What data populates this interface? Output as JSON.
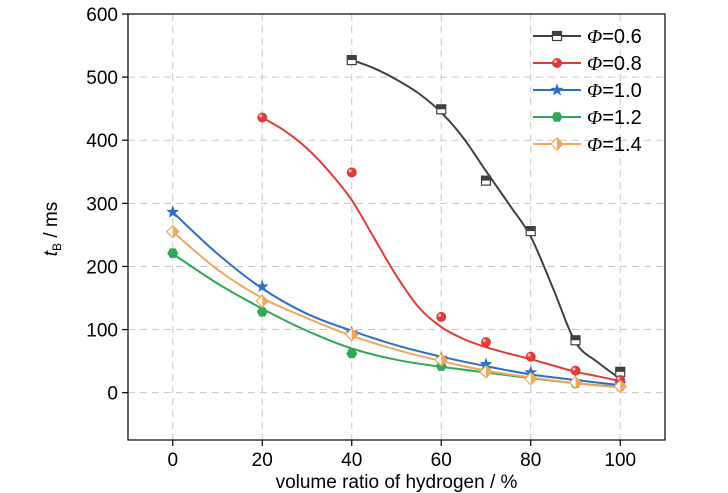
{
  "chart_data": {
    "type": "line",
    "title": "",
    "xlabel": "volume ratio of hydrogen / %",
    "ylabel": {
      "main": "t",
      "sub": "B",
      "unit": " / ms"
    },
    "xlim": [
      -10,
      110
    ],
    "ylim": [
      -75,
      600
    ],
    "xticks": [
      0,
      20,
      40,
      60,
      80,
      100
    ],
    "yticks": [
      0,
      100,
      200,
      300,
      400,
      500,
      600
    ],
    "grid": true,
    "legend_position": "top-right",
    "series": [
      {
        "name_prefix": "Φ",
        "name_suffix": "=0.6",
        "color": "#404040",
        "marker": "half-square",
        "points": [
          [
            40,
            527
          ],
          [
            60,
            449
          ],
          [
            70,
            336
          ],
          [
            80,
            256
          ],
          [
            90,
            83
          ],
          [
            100,
            33
          ]
        ],
        "curve": [
          [
            40,
            527
          ],
          [
            45,
            514
          ],
          [
            50,
            496
          ],
          [
            55,
            474
          ],
          [
            60,
            444
          ],
          [
            65,
            403
          ],
          [
            70,
            351
          ],
          [
            75,
            300
          ],
          [
            80,
            247
          ],
          [
            85,
            165
          ],
          [
            90,
            80
          ],
          [
            95,
            48
          ],
          [
            100,
            22
          ]
        ]
      },
      {
        "name_prefix": "Φ",
        "name_suffix": "=0.8",
        "color": "#e03c3c",
        "marker": "circle",
        "points": [
          [
            20,
            436
          ],
          [
            40,
            349
          ],
          [
            60,
            120
          ],
          [
            70,
            80
          ],
          [
            80,
            57
          ],
          [
            90,
            35
          ],
          [
            100,
            20
          ]
        ],
        "curve": [
          [
            20,
            436
          ],
          [
            25,
            415
          ],
          [
            30,
            387
          ],
          [
            35,
            350
          ],
          [
            40,
            305
          ],
          [
            45,
            245
          ],
          [
            50,
            185
          ],
          [
            55,
            135
          ],
          [
            60,
            104
          ],
          [
            65,
            85
          ],
          [
            70,
            72
          ],
          [
            75,
            62
          ],
          [
            80,
            53
          ],
          [
            85,
            43
          ],
          [
            90,
            33
          ],
          [
            95,
            26
          ],
          [
            100,
            18
          ]
        ]
      },
      {
        "name_prefix": "Φ",
        "name_suffix": "=1.0",
        "color": "#2f6ec4",
        "marker": "star",
        "points": [
          [
            0,
            286
          ],
          [
            20,
            168
          ],
          [
            40,
            95
          ],
          [
            60,
            55
          ],
          [
            70,
            45
          ],
          [
            80,
            32
          ],
          [
            90,
            18
          ],
          [
            100,
            14
          ]
        ],
        "curve": [
          [
            0,
            286
          ],
          [
            10,
            220
          ],
          [
            20,
            165
          ],
          [
            30,
            125
          ],
          [
            40,
            98
          ],
          [
            50,
            75
          ],
          [
            60,
            57
          ],
          [
            70,
            42
          ],
          [
            80,
            29
          ],
          [
            90,
            20
          ],
          [
            100,
            12
          ]
        ]
      },
      {
        "name_prefix": "Φ",
        "name_suffix": "=1.2",
        "color": "#2fa85a",
        "marker": "hexagon",
        "points": [
          [
            0,
            221
          ],
          [
            20,
            128
          ],
          [
            40,
            62
          ],
          [
            60,
            42
          ],
          [
            70,
            35
          ],
          [
            80,
            23
          ],
          [
            90,
            15
          ],
          [
            100,
            10
          ]
        ],
        "curve": [
          [
            0,
            220
          ],
          [
            10,
            173
          ],
          [
            20,
            133
          ],
          [
            30,
            98
          ],
          [
            40,
            70
          ],
          [
            50,
            52
          ],
          [
            60,
            41
          ],
          [
            70,
            32
          ],
          [
            80,
            23
          ],
          [
            90,
            15
          ],
          [
            100,
            9
          ]
        ]
      },
      {
        "name_prefix": "Φ",
        "name_suffix": "=1.4",
        "color": "#f2a65e",
        "marker": "half-diamond",
        "points": [
          [
            0,
            255
          ],
          [
            20,
            145
          ],
          [
            40,
            92
          ],
          [
            60,
            52
          ],
          [
            70,
            33
          ],
          [
            80,
            22
          ],
          [
            90,
            16
          ],
          [
            100,
            10
          ]
        ],
        "curve": [
          [
            0,
            255
          ],
          [
            10,
            195
          ],
          [
            20,
            150
          ],
          [
            30,
            118
          ],
          [
            40,
            90
          ],
          [
            50,
            68
          ],
          [
            60,
            50
          ],
          [
            70,
            35
          ],
          [
            80,
            24
          ],
          [
            90,
            15
          ],
          [
            100,
            8
          ]
        ]
      }
    ]
  }
}
